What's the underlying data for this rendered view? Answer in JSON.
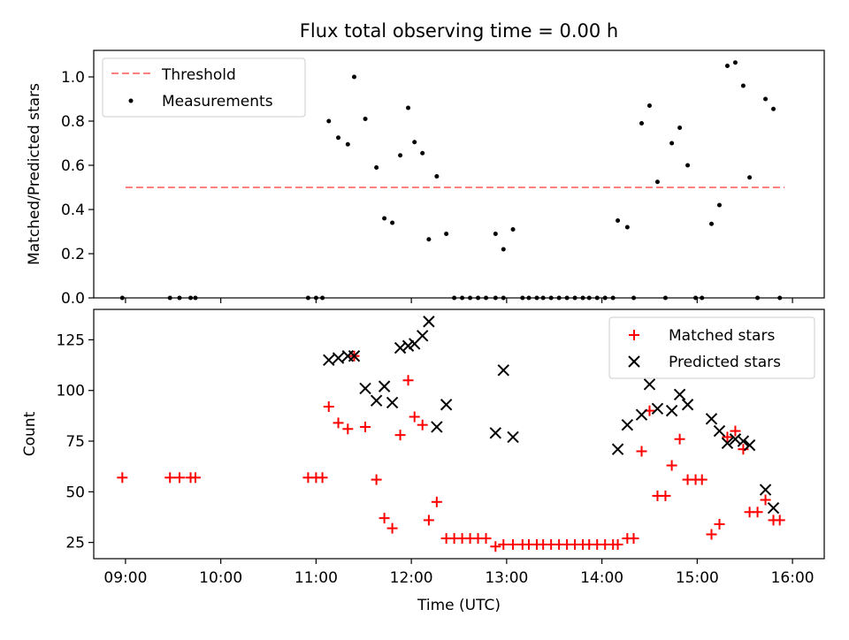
{
  "chart_data": [
    {
      "type": "scatter",
      "title": "Flux total observing time = 0.00 h",
      "xlabel": "",
      "ylabel": "Matched/Predicted stars",
      "xlim": [
        "08:40",
        "16:20"
      ],
      "ylim": [
        0,
        1.12
      ],
      "x_ticks": [
        "09:00",
        "10:00",
        "11:00",
        "12:00",
        "13:00",
        "14:00",
        "15:00",
        "16:00"
      ],
      "y_ticks": [
        "0.0",
        "0.2",
        "0.4",
        "0.6",
        "0.8",
        "1.0"
      ],
      "legend_position": "top-left",
      "threshold": {
        "name": "Threshold",
        "y": 0.5,
        "x_range": [
          "09:00",
          "15:55"
        ],
        "color": "#ff8080"
      },
      "series": [
        {
          "name": "Measurements",
          "color": "#000000",
          "points": [
            [
              "08:58",
              0
            ],
            [
              "09:28",
              0
            ],
            [
              "09:34",
              0
            ],
            [
              "09:41",
              0
            ],
            [
              "09:44",
              0
            ],
            [
              "10:55",
              0
            ],
            [
              "11:00",
              0
            ],
            [
              "11:04",
              0
            ],
            [
              "11:08",
              0.8
            ],
            [
              "11:14",
              0.725
            ],
            [
              "11:20",
              0.695
            ],
            [
              "11:24",
              1.0
            ],
            [
              "11:31",
              0.81
            ],
            [
              "11:38",
              0.59
            ],
            [
              "11:43",
              0.36
            ],
            [
              "11:48",
              0.34
            ],
            [
              "11:53",
              0.645
            ],
            [
              "11:58",
              0.86
            ],
            [
              "12:02",
              0.705
            ],
            [
              "12:07",
              0.655
            ],
            [
              "12:11",
              0.265
            ],
            [
              "12:16",
              0.55
            ],
            [
              "12:22",
              0.29
            ],
            [
              "12:27",
              0
            ],
            [
              "12:32",
              0
            ],
            [
              "12:37",
              0
            ],
            [
              "12:42",
              0
            ],
            [
              "12:47",
              0
            ],
            [
              "12:53",
              0
            ],
            [
              "12:58",
              0
            ],
            [
              "12:53",
              0.29
            ],
            [
              "12:58",
              0.22
            ],
            [
              "13:04",
              0.31
            ],
            [
              "13:10",
              0
            ],
            [
              "13:14",
              0
            ],
            [
              "13:19",
              0
            ],
            [
              "13:23",
              0
            ],
            [
              "13:28",
              0
            ],
            [
              "13:33",
              0
            ],
            [
              "13:38",
              0
            ],
            [
              "13:43",
              0
            ],
            [
              "13:48",
              0
            ],
            [
              "13:52",
              0
            ],
            [
              "13:57",
              0
            ],
            [
              "14:02",
              0
            ],
            [
              "14:07",
              0
            ],
            [
              "14:10",
              0.35
            ],
            [
              "14:16",
              0.32
            ],
            [
              "14:20",
              0
            ],
            [
              "14:25",
              0.79
            ],
            [
              "14:30",
              0.87
            ],
            [
              "14:35",
              0.525
            ],
            [
              "14:40",
              0
            ],
            [
              "14:44",
              0.7
            ],
            [
              "14:49",
              0.77
            ],
            [
              "14:54",
              0.6
            ],
            [
              "14:59",
              0
            ],
            [
              "15:03",
              0
            ],
            [
              "15:09",
              0.335
            ],
            [
              "15:14",
              0.42
            ],
            [
              "15:19",
              1.05
            ],
            [
              "15:24",
              1.065
            ],
            [
              "15:29",
              0.96
            ],
            [
              "15:33",
              0.545
            ],
            [
              "15:38",
              0
            ],
            [
              "15:43",
              0.9
            ],
            [
              "15:48",
              0.855
            ],
            [
              "15:52",
              0
            ]
          ]
        }
      ]
    },
    {
      "type": "scatter",
      "title": "",
      "xlabel": "Time (UTC)",
      "ylabel": "Count",
      "xlim": [
        "08:40",
        "16:20"
      ],
      "ylim": [
        17,
        140
      ],
      "x_ticks": [
        "09:00",
        "10:00",
        "11:00",
        "12:00",
        "13:00",
        "14:00",
        "15:00",
        "16:00"
      ],
      "y_ticks": [
        "25",
        "50",
        "75",
        "100",
        "125"
      ],
      "legend_position": "top-right",
      "series": [
        {
          "name": "Matched stars",
          "marker": "plus",
          "color": "#ff0000",
          "points": [
            [
              "08:58",
              57
            ],
            [
              "09:28",
              57
            ],
            [
              "09:34",
              57
            ],
            [
              "09:41",
              57
            ],
            [
              "09:44",
              57
            ],
            [
              "10:55",
              57
            ],
            [
              "11:00",
              57
            ],
            [
              "11:04",
              57
            ],
            [
              "11:08",
              92
            ],
            [
              "11:14",
              84
            ],
            [
              "11:20",
              81
            ],
            [
              "11:24",
              117
            ],
            [
              "11:31",
              82
            ],
            [
              "11:38",
              56
            ],
            [
              "11:43",
              37
            ],
            [
              "11:48",
              32
            ],
            [
              "11:53",
              78
            ],
            [
              "11:58",
              105
            ],
            [
              "12:02",
              87
            ],
            [
              "12:07",
              83
            ],
            [
              "12:11",
              36
            ],
            [
              "12:16",
              45
            ],
            [
              "12:22",
              27
            ],
            [
              "12:27",
              27
            ],
            [
              "12:32",
              27
            ],
            [
              "12:37",
              27
            ],
            [
              "12:42",
              27
            ],
            [
              "12:47",
              27
            ],
            [
              "12:53",
              23
            ],
            [
              "12:58",
              24
            ],
            [
              "13:04",
              24
            ],
            [
              "13:10",
              24
            ],
            [
              "13:14",
              24
            ],
            [
              "13:19",
              24
            ],
            [
              "13:23",
              24
            ],
            [
              "13:28",
              24
            ],
            [
              "13:33",
              24
            ],
            [
              "13:38",
              24
            ],
            [
              "13:43",
              24
            ],
            [
              "13:48",
              24
            ],
            [
              "13:52",
              24
            ],
            [
              "13:57",
              24
            ],
            [
              "14:02",
              24
            ],
            [
              "14:07",
              24
            ],
            [
              "14:10",
              24
            ],
            [
              "14:16",
              27
            ],
            [
              "14:20",
              27
            ],
            [
              "14:25",
              70
            ],
            [
              "14:30",
              90
            ],
            [
              "14:35",
              48
            ],
            [
              "14:40",
              48
            ],
            [
              "14:44",
              63
            ],
            [
              "14:49",
              76
            ],
            [
              "14:54",
              56
            ],
            [
              "14:59",
              56
            ],
            [
              "15:03",
              56
            ],
            [
              "15:09",
              29
            ],
            [
              "15:14",
              34
            ],
            [
              "15:19",
              77
            ],
            [
              "15:24",
              80
            ],
            [
              "15:29",
              71
            ],
            [
              "15:33",
              40
            ],
            [
              "15:38",
              40
            ],
            [
              "15:43",
              46
            ],
            [
              "15:48",
              36
            ],
            [
              "15:52",
              36
            ]
          ]
        },
        {
          "name": "Predicted stars",
          "marker": "x",
          "color": "#000000",
          "points": [
            [
              "11:08",
              115
            ],
            [
              "11:14",
              116
            ],
            [
              "11:20",
              117
            ],
            [
              "11:24",
              117
            ],
            [
              "11:31",
              101
            ],
            [
              "11:38",
              95
            ],
            [
              "11:43",
              102
            ],
            [
              "11:48",
              94
            ],
            [
              "11:53",
              121
            ],
            [
              "11:58",
              122
            ],
            [
              "12:02",
              123
            ],
            [
              "12:07",
              127
            ],
            [
              "12:11",
              134
            ],
            [
              "12:16",
              82
            ],
            [
              "12:22",
              93
            ],
            [
              "12:53",
              79
            ],
            [
              "12:58",
              110
            ],
            [
              "13:04",
              77
            ],
            [
              "14:10",
              71
            ],
            [
              "14:16",
              83
            ],
            [
              "14:25",
              88
            ],
            [
              "14:30",
              103
            ],
            [
              "14:35",
              91
            ],
            [
              "14:44",
              90
            ],
            [
              "14:49",
              98
            ],
            [
              "14:54",
              93
            ],
            [
              "15:09",
              86
            ],
            [
              "15:14",
              80
            ],
            [
              "15:19",
              74
            ],
            [
              "15:24",
              76
            ],
            [
              "15:29",
              75
            ],
            [
              "15:33",
              73
            ],
            [
              "15:43",
              51
            ],
            [
              "15:48",
              42
            ]
          ]
        }
      ]
    }
  ]
}
